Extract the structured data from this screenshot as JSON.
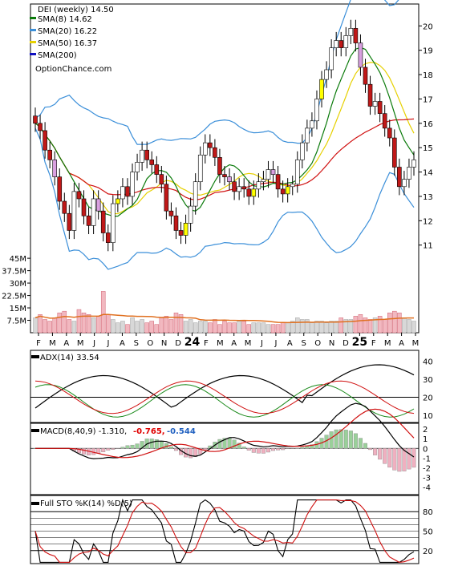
{
  "chart_data": {
    "type": "stock-chart",
    "ticker_label": "DEI (weekly) 14.50",
    "watermark": "OptionChance.com",
    "legend": [
      {
        "label": "SMA(8) 14.62",
        "color": "#0a7a0a"
      },
      {
        "label": "SMA(20) 16.22",
        "color": "#3b8fd9"
      },
      {
        "label": "SMA(50) 16.37",
        "color": "#e6d000"
      },
      {
        "label": "SMA(200)",
        "color": "#1010c0"
      }
    ],
    "price_axis": {
      "ticks": [
        "20",
        "19",
        "18",
        "17",
        "16",
        "15",
        "14",
        "13",
        "12",
        "11"
      ],
      "ylim": [
        10.2,
        20.8
      ]
    },
    "volume_axis": {
      "ticks": [
        "45M",
        "37.5M",
        "30M",
        "22.5M",
        "15M",
        "7.5M"
      ],
      "ylim": [
        0,
        47
      ]
    },
    "x_axis": {
      "labels": [
        "F",
        "M",
        "A",
        "M",
        "J",
        "J",
        "A",
        "S",
        "O",
        "N",
        "D",
        "24",
        "F",
        "M",
        "A",
        "M",
        "J",
        "J",
        "A",
        "S",
        "O",
        "N",
        "D",
        "25",
        "F",
        "M",
        "A",
        "M"
      ]
    },
    "close": [
      16.0,
      15.7,
      14.9,
      14.5,
      13.8,
      12.8,
      12.3,
      11.6,
      13.2,
      12.9,
      12.2,
      11.8,
      12.9,
      12.4,
      11.5,
      11.1,
      12.7,
      12.9,
      13.4,
      13.0,
      14.0,
      14.4,
      14.9,
      14.5,
      14.3,
      13.9,
      13.5,
      12.4,
      12.2,
      11.6,
      11.4,
      11.9,
      12.6,
      13.6,
      14.7,
      15.2,
      15.0,
      14.6,
      13.9,
      13.8,
      13.6,
      13.2,
      13.4,
      13.3,
      13.0,
      13.3,
      13.6,
      13.7,
      14.1,
      13.9,
      13.3,
      13.1,
      13.4,
      13.5,
      14.5,
      15.2,
      15.8,
      16.1,
      17.0,
      17.8,
      18.2,
      19.1,
      19.4,
      19.1,
      19.6,
      19.9,
      19.3,
      18.3,
      17.6,
      16.7,
      16.9,
      16.4,
      15.8,
      15.4,
      14.2,
      13.4,
      13.7,
      14.2,
      14.5
    ],
    "volume": [
      9,
      11,
      8,
      7,
      9,
      12,
      13,
      8,
      7,
      14,
      12,
      11,
      9,
      10,
      25,
      11,
      8,
      6,
      7,
      5,
      9,
      7,
      8,
      6,
      7,
      5,
      9,
      10,
      8,
      12,
      11,
      7,
      8,
      6,
      7,
      7,
      6,
      8,
      5,
      7,
      6,
      6,
      7,
      7,
      5,
      6,
      6,
      6,
      5,
      5,
      5,
      6,
      6,
      7,
      9,
      8,
      8,
      6,
      7,
      7,
      6,
      7,
      7,
      9,
      8,
      8,
      10,
      11,
      9,
      8,
      9,
      10,
      8,
      12,
      13,
      12,
      9,
      8,
      7
    ],
    "adx_panel": {
      "title": "ADX(14) 33.54",
      "ticks": [
        "40",
        "30",
        "20",
        "10"
      ],
      "ylim": [
        6,
        46
      ]
    },
    "macd_panel": {
      "title": "MACD(8,40,9) -1.310,",
      "signal_label": "-0.765,",
      "hist_label": "-0.544",
      "signal_color": "#e00000",
      "hist_color": "#2060c0",
      "ticks": [
        "2",
        "1",
        "0",
        "-1",
        "-2",
        "-3",
        "-4"
      ],
      "ylim": [
        -4.8,
        2.6
      ]
    },
    "sto_panel": {
      "title": "Full STO %K(14) %D(5)",
      "ticks": [
        "80",
        "50",
        "20"
      ],
      "ylim": [
        0,
        100
      ]
    }
  }
}
